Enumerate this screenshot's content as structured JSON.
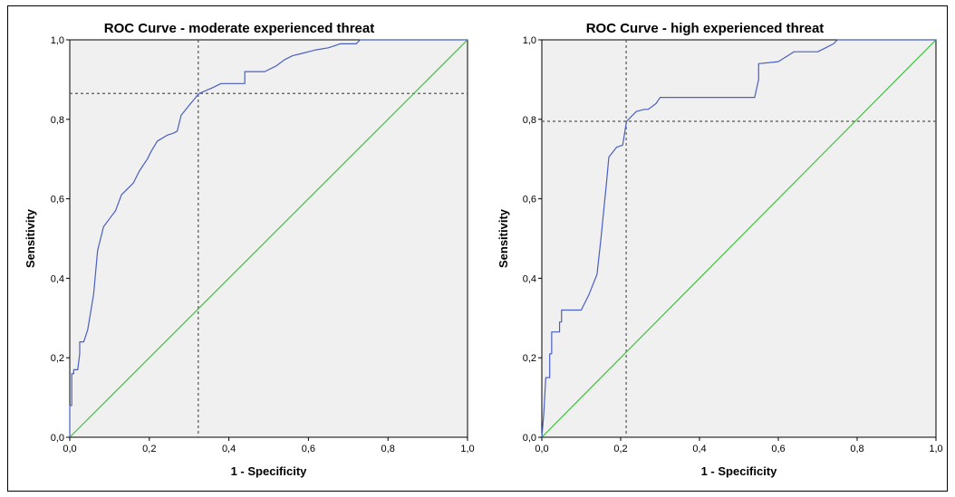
{
  "chart_data": [
    {
      "type": "line",
      "title": "ROC Curve - moderate experienced threat",
      "xlabel": "1 - Specificity",
      "ylabel": "Sensitivity",
      "xlim": [
        0,
        1
      ],
      "ylim": [
        0,
        1
      ],
      "xticks": [
        "0,0",
        "0,2",
        "0,4",
        "0,6",
        "0,8",
        "1,0"
      ],
      "yticks": [
        "0,0",
        "0,2",
        "0,4",
        "0,6",
        "0,8",
        "1,0"
      ],
      "grid": false,
      "colors": {
        "curve": "#4a5fc1",
        "reference": "#3cc43c",
        "plot_bg": "#f0f0f0",
        "cutoff": "#555555"
      },
      "series": [
        {
          "x": [
            0,
            0,
            0.005,
            0.005,
            0.01,
            0.01,
            0.02,
            0.025,
            0.025,
            0.035,
            0.045,
            0.06,
            0.07,
            0.075,
            0.085,
            0.1,
            0.115,
            0.13,
            0.14,
            0.16,
            0.175,
            0.195,
            0.205,
            0.22,
            0.245,
            0.26,
            0.27,
            0.28,
            0.3,
            0.325,
            0.36,
            0.38,
            0.4,
            0.42,
            0.44,
            0.44,
            0.47,
            0.49,
            0.52,
            0.54,
            0.56,
            0.58,
            0.6,
            0.62,
            0.65,
            0.68,
            0.7,
            0.72,
            0.73,
            1.0
          ],
          "y": [
            0,
            0.08,
            0.08,
            0.16,
            0.16,
            0.17,
            0.17,
            0.21,
            0.24,
            0.24,
            0.27,
            0.36,
            0.47,
            0.49,
            0.53,
            0.55,
            0.57,
            0.61,
            0.62,
            0.64,
            0.67,
            0.7,
            0.72,
            0.745,
            0.76,
            0.765,
            0.77,
            0.81,
            0.835,
            0.865,
            0.88,
            0.89,
            0.89,
            0.89,
            0.89,
            0.92,
            0.92,
            0.92,
            0.935,
            0.95,
            0.96,
            0.965,
            0.97,
            0.975,
            0.98,
            0.99,
            0.99,
            0.99,
            1.0,
            1.0
          ]
        },
        {
          "x": [
            0,
            1
          ],
          "y": [
            0,
            1
          ]
        }
      ],
      "cutoff": {
        "x": 0.323,
        "y": 0.865
      }
    },
    {
      "type": "line",
      "title": "ROC Curve - high experienced threat",
      "xlabel": "1 - Specificity",
      "ylabel": "Sensitivity",
      "xlim": [
        0,
        1
      ],
      "ylim": [
        0,
        1
      ],
      "xticks": [
        "0,0",
        "0,2",
        "0,4",
        "0,6",
        "0,8",
        "1,0"
      ],
      "yticks": [
        "0,0",
        "0,2",
        "0,4",
        "0,6",
        "0,8",
        "1,0"
      ],
      "grid": false,
      "colors": {
        "curve": "#4a5fc1",
        "reference": "#3cc43c",
        "plot_bg": "#f0f0f0",
        "cutoff": "#555555"
      },
      "series": [
        {
          "x": [
            0,
            0.005,
            0.01,
            0.01,
            0.02,
            0.02,
            0.025,
            0.025,
            0.03,
            0.03,
            0.045,
            0.045,
            0.05,
            0.05,
            0.055,
            0.09,
            0.1,
            0.12,
            0.14,
            0.15,
            0.16,
            0.165,
            0.17,
            0.19,
            0.205,
            0.215,
            0.24,
            0.26,
            0.27,
            0.29,
            0.3,
            0.48,
            0.54,
            0.55,
            0.55,
            0.6,
            0.64,
            0.7,
            0.72,
            0.74,
            0.75,
            1.0
          ],
          "y": [
            0,
            0.06,
            0.15,
            0.15,
            0.15,
            0.21,
            0.21,
            0.265,
            0.265,
            0.265,
            0.265,
            0.29,
            0.29,
            0.32,
            0.32,
            0.32,
            0.32,
            0.36,
            0.41,
            0.5,
            0.6,
            0.65,
            0.705,
            0.73,
            0.735,
            0.795,
            0.82,
            0.825,
            0.825,
            0.84,
            0.855,
            0.855,
            0.855,
            0.9,
            0.94,
            0.945,
            0.97,
            0.97,
            0.98,
            0.99,
            1.0,
            1.0
          ]
        },
        {
          "x": [
            0,
            1
          ],
          "y": [
            0,
            1
          ]
        }
      ],
      "cutoff": {
        "x": 0.214,
        "y": 0.795
      }
    }
  ]
}
